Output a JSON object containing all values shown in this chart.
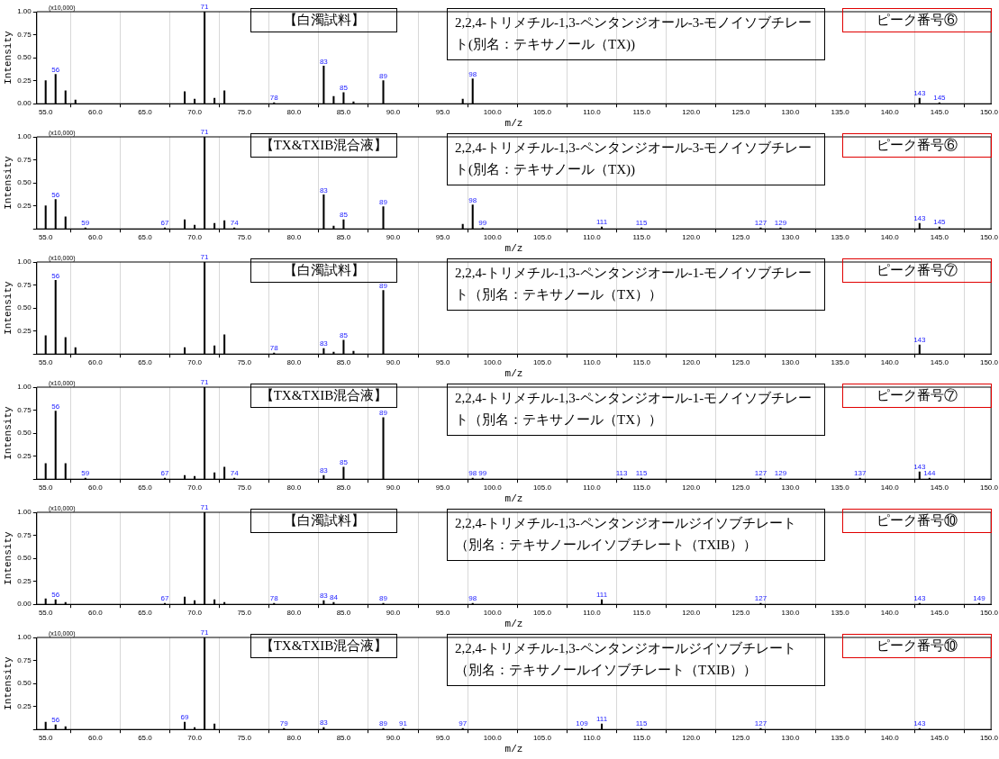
{
  "chart_data": [
    {
      "type": "bar",
      "xlabel": "m/z",
      "ylabel": "Intensity",
      "color": "#000000",
      "grid": "x",
      "x": [
        55,
        56,
        57,
        58,
        69,
        70,
        71,
        72,
        73,
        78,
        83,
        84,
        85,
        86,
        89,
        97,
        98,
        143,
        145
      ],
      "values": [
        0.25,
        0.32,
        0.14,
        0.04,
        0.13,
        0.05,
        1.0,
        0.06,
        0.14,
        0.01,
        0.41,
        0.08,
        0.12,
        0.02,
        0.25,
        0.05,
        0.27,
        0.06,
        0.01
      ],
      "xlim": [
        54.1,
        150.2
      ],
      "xticks": [
        {
          "value": 55,
          "label": "55.0"
        },
        {
          "value": 60,
          "label": "60.0"
        },
        {
          "value": 65,
          "label": "65.0"
        },
        {
          "value": 70,
          "label": "70.0"
        },
        {
          "value": 75,
          "label": "75.0"
        },
        {
          "value": 80,
          "label": "80.0"
        },
        {
          "value": 85,
          "label": "85.0"
        },
        {
          "value": 90,
          "label": "90.0"
        },
        {
          "value": 95,
          "label": "95.0"
        },
        {
          "value": 100,
          "label": "100.0"
        },
        {
          "value": 105,
          "label": "105.0"
        },
        {
          "value": 110,
          "label": "110.0"
        },
        {
          "value": 115,
          "label": "115.0"
        },
        {
          "value": 120,
          "label": "120.0"
        },
        {
          "value": 125,
          "label": "125.0"
        },
        {
          "value": 130,
          "label": "130.0"
        },
        {
          "value": 135,
          "label": "135.0"
        },
        {
          "value": 140,
          "label": "140.0"
        },
        {
          "value": 145,
          "label": "145.0"
        },
        {
          "value": 150,
          "label": "150.0"
        }
      ],
      "ylim": [
        0,
        1
      ],
      "yticks": [
        {
          "value": 0,
          "label": "0.00"
        },
        {
          "value": 0.25,
          "label": "0.25"
        },
        {
          "value": 0.5,
          "label": "0.50"
        },
        {
          "value": 0.75,
          "label": "0.75"
        },
        {
          "value": 1,
          "label": "1.00"
        }
      ],
      "annotations": [
        "(x10,000)",
        "【白濁試料】",
        "2,2,4-トリメチル-1,3-ペンタンジオール-3-モノイソブチレート(別名：テキサノール（TX))",
        "ピーク番号⑥",
        {
          "text": "56",
          "x": 56,
          "y": 0.32
        },
        {
          "text": "71",
          "x": 71,
          "y": 1.0
        },
        {
          "text": "78",
          "x": 78,
          "y": 0.01
        },
        {
          "text": "83",
          "x": 83,
          "y": 0.41
        },
        {
          "text": "85",
          "x": 85,
          "y": 0.12
        },
        {
          "text": "89",
          "x": 89,
          "y": 0.25
        },
        {
          "text": "98",
          "x": 98,
          "y": 0.27
        },
        {
          "text": "143",
          "x": 143,
          "y": 0.06
        },
        {
          "text": "145",
          "x": 145,
          "y": 0.01
        }
      ]
    },
    {
      "type": "bar",
      "xlabel": "m/z",
      "ylabel": "Intensity",
      "color": "#000000",
      "grid": "x",
      "x": [
        55,
        56,
        57,
        59,
        67,
        69,
        70,
        71,
        72,
        73,
        74,
        83,
        84,
        85,
        89,
        97,
        98,
        99,
        111,
        115,
        127,
        129,
        143,
        145
      ],
      "values": [
        0.25,
        0.32,
        0.13,
        0.01,
        0.01,
        0.1,
        0.04,
        1.0,
        0.06,
        0.09,
        0.01,
        0.37,
        0.03,
        0.1,
        0.24,
        0.05,
        0.26,
        0.01,
        0.02,
        0.01,
        0.01,
        0.01,
        0.06,
        0.02
      ],
      "xlim": [
        54.1,
        150.2
      ],
      "xticks": [
        {
          "value": 55,
          "label": "55.0"
        },
        {
          "value": 60,
          "label": "60.0"
        },
        {
          "value": 65,
          "label": "65.0"
        },
        {
          "value": 70,
          "label": "70.0"
        },
        {
          "value": 75,
          "label": "75.0"
        },
        {
          "value": 80,
          "label": "80.0"
        },
        {
          "value": 85,
          "label": "85.0"
        },
        {
          "value": 90,
          "label": "90.0"
        },
        {
          "value": 95,
          "label": "95.0"
        },
        {
          "value": 100,
          "label": "100.0"
        },
        {
          "value": 105,
          "label": "105.0"
        },
        {
          "value": 110,
          "label": "110.0"
        },
        {
          "value": 115,
          "label": "115.0"
        },
        {
          "value": 120,
          "label": "120.0"
        },
        {
          "value": 125,
          "label": "125.0"
        },
        {
          "value": 130,
          "label": "130.0"
        },
        {
          "value": 135,
          "label": "135.0"
        },
        {
          "value": 140,
          "label": "140.0"
        },
        {
          "value": 145,
          "label": "145.0"
        },
        {
          "value": 150,
          "label": "150.0"
        }
      ],
      "ylim": [
        0,
        1
      ],
      "yticks": [
        {
          "value": 0,
          "label": null
        },
        {
          "value": 0.25,
          "label": "0.25"
        },
        {
          "value": 0.5,
          "label": "0.50"
        },
        {
          "value": 0.75,
          "label": "0.75"
        },
        {
          "value": 1,
          "label": "1.00"
        }
      ],
      "annotations": [
        "(x10,000)",
        "【TX&TXIB混合液】",
        "2,2,4-トリメチル-1,3-ペンタンジオール-3-モノイソブチレート(別名：テキサノール（TX))",
        "ピーク番号⑥",
        {
          "text": "56",
          "x": 56,
          "y": 0.32
        },
        {
          "text": "59",
          "x": 59,
          "y": 0.01
        },
        {
          "text": "67",
          "x": 67,
          "y": 0.01
        },
        {
          "text": "71",
          "x": 71,
          "y": 1.0
        },
        {
          "text": "74",
          "x": 74,
          "y": 0.01
        },
        {
          "text": "83",
          "x": 83,
          "y": 0.37
        },
        {
          "text": "85",
          "x": 85,
          "y": 0.1
        },
        {
          "text": "89",
          "x": 89,
          "y": 0.24
        },
        {
          "text": "98",
          "x": 98,
          "y": 0.26
        },
        {
          "text": "99",
          "x": 99,
          "y": 0.01
        },
        {
          "text": "111",
          "x": 111,
          "y": 0.02
        },
        {
          "text": "115",
          "x": 115,
          "y": 0.01
        },
        {
          "text": "127",
          "x": 127,
          "y": 0.01
        },
        {
          "text": "129",
          "x": 129,
          "y": 0.01
        },
        {
          "text": "143",
          "x": 143,
          "y": 0.06
        },
        {
          "text": "145",
          "x": 145,
          "y": 0.02
        }
      ]
    },
    {
      "type": "bar",
      "xlabel": "m/z",
      "ylabel": "Intensity",
      "color": "#000000",
      "grid": "x",
      "x": [
        55,
        56,
        57,
        58,
        69,
        71,
        72,
        73,
        78,
        83,
        84,
        85,
        86,
        89,
        143
      ],
      "values": [
        0.2,
        0.8,
        0.18,
        0.07,
        0.07,
        1.0,
        0.09,
        0.21,
        0.01,
        0.06,
        0.02,
        0.15,
        0.03,
        0.69,
        0.1
      ],
      "xlim": [
        54.1,
        150.2
      ],
      "xticks": [
        {
          "value": 55,
          "label": "55.0"
        },
        {
          "value": 60,
          "label": "60.0"
        },
        {
          "value": 65,
          "label": "65.0"
        },
        {
          "value": 70,
          "label": "70.0"
        },
        {
          "value": 75,
          "label": "75.0"
        },
        {
          "value": 80,
          "label": "80.0"
        },
        {
          "value": 85,
          "label": "85.0"
        },
        {
          "value": 90,
          "label": "90.0"
        },
        {
          "value": 95,
          "label": "95.0"
        },
        {
          "value": 100,
          "label": "100.0"
        },
        {
          "value": 105,
          "label": "105.0"
        },
        {
          "value": 110,
          "label": "110.0"
        },
        {
          "value": 115,
          "label": "115.0"
        },
        {
          "value": 120,
          "label": "120.0"
        },
        {
          "value": 125,
          "label": "125.0"
        },
        {
          "value": 130,
          "label": "130.0"
        },
        {
          "value": 135,
          "label": "135.0"
        },
        {
          "value": 140,
          "label": "140.0"
        },
        {
          "value": 145,
          "label": "145.0"
        },
        {
          "value": 150,
          "label": "150.0"
        }
      ],
      "ylim": [
        0,
        1
      ],
      "yticks": [
        {
          "value": 0,
          "label": null
        },
        {
          "value": 0.25,
          "label": "0.25"
        },
        {
          "value": 0.5,
          "label": "0.50"
        },
        {
          "value": 0.75,
          "label": "0.75"
        },
        {
          "value": 1,
          "label": "1.00"
        }
      ],
      "annotations": [
        "(x10,000)",
        "【白濁試料】",
        "2,2,4-トリメチル-1,3-ペンタンジオール-1-モノイソブチレート（別名：テキサノール（TX））",
        "ピーク番号⑦",
        {
          "text": "56",
          "x": 56,
          "y": 0.8
        },
        {
          "text": "71",
          "x": 71,
          "y": 1.0
        },
        {
          "text": "78",
          "x": 78,
          "y": 0.01
        },
        {
          "text": "83",
          "x": 83,
          "y": 0.06
        },
        {
          "text": "85",
          "x": 85,
          "y": 0.15
        },
        {
          "text": "89",
          "x": 89,
          "y": 0.69
        },
        {
          "text": "143",
          "x": 143,
          "y": 0.1
        }
      ]
    },
    {
      "type": "bar",
      "xlabel": "m/z",
      "ylabel": "Intensity",
      "color": "#000000",
      "grid": "x",
      "x": [
        55,
        56,
        57,
        59,
        67,
        69,
        70,
        71,
        72,
        73,
        74,
        83,
        85,
        89,
        98,
        99,
        113,
        115,
        127,
        129,
        137,
        143,
        144
      ],
      "values": [
        0.17,
        0.74,
        0.17,
        0.01,
        0.01,
        0.04,
        0.03,
        1.0,
        0.07,
        0.13,
        0.01,
        0.04,
        0.13,
        0.67,
        0.01,
        0.01,
        0.01,
        0.01,
        0.01,
        0.01,
        0.01,
        0.08,
        0.01
      ],
      "xlim": [
        54.1,
        150.2
      ],
      "xticks": [
        {
          "value": 55,
          "label": "55.0"
        },
        {
          "value": 60,
          "label": "60.0"
        },
        {
          "value": 65,
          "label": "65.0"
        },
        {
          "value": 70,
          "label": "70.0"
        },
        {
          "value": 75,
          "label": "75.0"
        },
        {
          "value": 80,
          "label": "80.0"
        },
        {
          "value": 85,
          "label": "85.0"
        },
        {
          "value": 90,
          "label": "90.0"
        },
        {
          "value": 95,
          "label": "95.0"
        },
        {
          "value": 100,
          "label": "100.0"
        },
        {
          "value": 105,
          "label": "105.0"
        },
        {
          "value": 110,
          "label": "110.0"
        },
        {
          "value": 115,
          "label": "115.0"
        },
        {
          "value": 120,
          "label": "120.0"
        },
        {
          "value": 125,
          "label": "125.0"
        },
        {
          "value": 130,
          "label": "130.0"
        },
        {
          "value": 135,
          "label": "135.0"
        },
        {
          "value": 140,
          "label": "140.0"
        },
        {
          "value": 145,
          "label": "145.0"
        },
        {
          "value": 150,
          "label": "150.0"
        }
      ],
      "ylim": [
        0,
        1
      ],
      "yticks": [
        {
          "value": 0,
          "label": null
        },
        {
          "value": 0.25,
          "label": "0.25"
        },
        {
          "value": 0.5,
          "label": "0.50"
        },
        {
          "value": 0.75,
          "label": "0.75"
        },
        {
          "value": 1,
          "label": "1.00"
        }
      ],
      "annotations": [
        "(x10,000)",
        "【TX&TXIB混合液】",
        "2,2,4-トリメチル-1,3-ペンタンジオール-1-モノイソブチレート（別名：テキサノール（TX））",
        "ピーク番号⑦",
        {
          "text": "56",
          "x": 56,
          "y": 0.74
        },
        {
          "text": "59",
          "x": 59,
          "y": 0.01
        },
        {
          "text": "67",
          "x": 67,
          "y": 0.01
        },
        {
          "text": "71",
          "x": 71,
          "y": 1.0
        },
        {
          "text": "74",
          "x": 74,
          "y": 0.01
        },
        {
          "text": "83",
          "x": 83,
          "y": 0.04
        },
        {
          "text": "85",
          "x": 85,
          "y": 0.13
        },
        {
          "text": "89",
          "x": 89,
          "y": 0.67
        },
        {
          "text": "98",
          "x": 98,
          "y": 0.01
        },
        {
          "text": "99",
          "x": 99,
          "y": 0.01
        },
        {
          "text": "113",
          "x": 113,
          "y": 0.01
        },
        {
          "text": "115",
          "x": 115,
          "y": 0.01
        },
        {
          "text": "127",
          "x": 127,
          "y": 0.01
        },
        {
          "text": "129",
          "x": 129,
          "y": 0.01
        },
        {
          "text": "137",
          "x": 137,
          "y": 0.01
        },
        {
          "text": "143",
          "x": 143,
          "y": 0.08
        },
        {
          "text": "144",
          "x": 144,
          "y": 0.01
        }
      ]
    },
    {
      "type": "bar",
      "xlabel": "m/z",
      "ylabel": "Intensity",
      "color": "#000000",
      "grid": "x",
      "x": [
        55,
        56,
        57,
        67,
        69,
        70,
        71,
        72,
        73,
        78,
        83,
        84,
        89,
        98,
        111,
        127,
        143,
        149
      ],
      "values": [
        0.06,
        0.05,
        0.02,
        0.01,
        0.08,
        0.04,
        1.0,
        0.05,
        0.02,
        0.01,
        0.04,
        0.02,
        0.01,
        0.01,
        0.05,
        0.01,
        0.01,
        0.01
      ],
      "xlim": [
        54.1,
        150.2
      ],
      "xticks": [
        {
          "value": 55,
          "label": "55.0"
        },
        {
          "value": 60,
          "label": "60.0"
        },
        {
          "value": 65,
          "label": "65.0"
        },
        {
          "value": 70,
          "label": "70.0"
        },
        {
          "value": 75,
          "label": "75.0"
        },
        {
          "value": 80,
          "label": "80.0"
        },
        {
          "value": 85,
          "label": "85.0"
        },
        {
          "value": 90,
          "label": "90.0"
        },
        {
          "value": 95,
          "label": "95.0"
        },
        {
          "value": 100,
          "label": "100.0"
        },
        {
          "value": 105,
          "label": "105.0"
        },
        {
          "value": 110,
          "label": "110.0"
        },
        {
          "value": 115,
          "label": "115.0"
        },
        {
          "value": 120,
          "label": "120.0"
        },
        {
          "value": 125,
          "label": "125.0"
        },
        {
          "value": 130,
          "label": "130.0"
        },
        {
          "value": 135,
          "label": "135.0"
        },
        {
          "value": 140,
          "label": "140.0"
        },
        {
          "value": 145,
          "label": "145.0"
        },
        {
          "value": 150,
          "label": "150.0"
        }
      ],
      "ylim": [
        0,
        1
      ],
      "yticks": [
        {
          "value": 0,
          "label": "0.00"
        },
        {
          "value": 0.25,
          "label": "0.25"
        },
        {
          "value": 0.5,
          "label": "0.50"
        },
        {
          "value": 0.75,
          "label": "0.75"
        },
        {
          "value": 1,
          "label": "1.00"
        }
      ],
      "annotations": [
        "(x10,000)",
        "【白濁試料】",
        "2,2,4-トリメチル-1,3-ペンタンジオールジイソブチレート（別名：テキサノールイソブチレート（TXIB））",
        "ピーク番号⑩",
        {
          "text": "56",
          "x": 56,
          "y": 0.05
        },
        {
          "text": "67",
          "x": 67,
          "y": 0.01
        },
        {
          "text": "71",
          "x": 71,
          "y": 1.0
        },
        {
          "text": "78",
          "x": 78,
          "y": 0.01
        },
        {
          "text": "83",
          "x": 83,
          "y": 0.04
        },
        {
          "text": "84",
          "x": 84,
          "y": 0.02
        },
        {
          "text": "89",
          "x": 89,
          "y": 0.01
        },
        {
          "text": "98",
          "x": 98,
          "y": 0.01
        },
        {
          "text": "111",
          "x": 111,
          "y": 0.05
        },
        {
          "text": "127",
          "x": 127,
          "y": 0.01
        },
        {
          "text": "143",
          "x": 143,
          "y": 0.01
        },
        {
          "text": "149",
          "x": 149,
          "y": 0.01
        }
      ]
    },
    {
      "type": "bar",
      "xlabel": "m/z",
      "ylabel": "Intensity",
      "color": "#000000",
      "grid": "x",
      "x": [
        55,
        56,
        57,
        69,
        70,
        71,
        72,
        79,
        83,
        89,
        91,
        97,
        109,
        111,
        115,
        127,
        143
      ],
      "values": [
        0.08,
        0.05,
        0.03,
        0.08,
        0.02,
        1.0,
        0.06,
        0.01,
        0.02,
        0.01,
        0.01,
        0.01,
        0.01,
        0.06,
        0.01,
        0.01,
        0.01
      ],
      "xlim": [
        54.1,
        150.2
      ],
      "xticks": [
        {
          "value": 55,
          "label": "55.0"
        },
        {
          "value": 60,
          "label": "60.0"
        },
        {
          "value": 65,
          "label": "65.0"
        },
        {
          "value": 70,
          "label": "70.0"
        },
        {
          "value": 75,
          "label": "75.0"
        },
        {
          "value": 80,
          "label": "80.0"
        },
        {
          "value": 85,
          "label": "85.0"
        },
        {
          "value": 90,
          "label": "90.0"
        },
        {
          "value": 95,
          "label": "95.0"
        },
        {
          "value": 100,
          "label": "100.0"
        },
        {
          "value": 105,
          "label": "105.0"
        },
        {
          "value": 110,
          "label": "110.0"
        },
        {
          "value": 115,
          "label": "115.0"
        },
        {
          "value": 120,
          "label": "120.0"
        },
        {
          "value": 125,
          "label": "125.0"
        },
        {
          "value": 130,
          "label": "130.0"
        },
        {
          "value": 135,
          "label": "135.0"
        },
        {
          "value": 140,
          "label": "140.0"
        },
        {
          "value": 145,
          "label": "145.0"
        },
        {
          "value": 150,
          "label": "150.0"
        }
      ],
      "ylim": [
        0,
        1
      ],
      "yticks": [
        {
          "value": 0,
          "label": null
        },
        {
          "value": 0.25,
          "label": "0.25"
        },
        {
          "value": 0.5,
          "label": "0.50"
        },
        {
          "value": 0.75,
          "label": "0.75"
        },
        {
          "value": 1,
          "label": "1.00"
        }
      ],
      "annotations": [
        "(x10,000)",
        "【TX&TXIB混合液】",
        "2,2,4-トリメチル-1,3-ペンタンジオールジイソブチレート（別名：テキサノールイソブチレート（TXIB））",
        "ピーク番号⑩",
        {
          "text": "56",
          "x": 56,
          "y": 0.05
        },
        {
          "text": "69",
          "x": 69,
          "y": 0.08
        },
        {
          "text": "71",
          "x": 71,
          "y": 1.0
        },
        {
          "text": "79",
          "x": 79,
          "y": 0.01
        },
        {
          "text": "83",
          "x": 83,
          "y": 0.02
        },
        {
          "text": "89",
          "x": 89,
          "y": 0.01
        },
        {
          "text": "91",
          "x": 91,
          "y": 0.01
        },
        {
          "text": "97",
          "x": 97,
          "y": 0.01
        },
        {
          "text": "109",
          "x": 109,
          "y": 0.01
        },
        {
          "text": "111",
          "x": 111,
          "y": 0.06
        },
        {
          "text": "115",
          "x": 115,
          "y": 0.01
        },
        {
          "text": "127",
          "x": 127,
          "y": 0.01
        },
        {
          "text": "143",
          "x": 143,
          "y": 0.01
        }
      ]
    }
  ]
}
